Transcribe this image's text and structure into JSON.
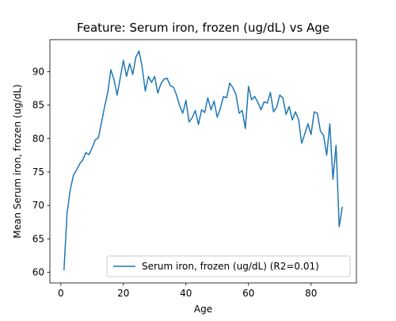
{
  "chart_data": {
    "type": "line",
    "title": "Feature: Serum iron, frozen (ug/dL) vs Age",
    "xlabel": "Age",
    "ylabel": "Mean Serum iron, frozen (ug/dL)",
    "xlim": [
      -3.5,
      94.5
    ],
    "ylim": [
      58.4,
      94.8
    ],
    "xticks": [
      0,
      20,
      40,
      60,
      80
    ],
    "yticks": [
      60,
      65,
      70,
      75,
      80,
      85,
      90
    ],
    "grid": false,
    "legend_position": "bottom-right",
    "series": [
      {
        "name": "Serum iron, frozen (ug/dL) (R2=0.01)",
        "color": "#1f77b4",
        "x": [
          1,
          2,
          3,
          4,
          5,
          6,
          7,
          8,
          9,
          10,
          11,
          12,
          13,
          14,
          15,
          16,
          17,
          18,
          19,
          20,
          21,
          22,
          23,
          24,
          25,
          26,
          27,
          28,
          29,
          30,
          31,
          32,
          33,
          34,
          35,
          36,
          37,
          38,
          39,
          40,
          41,
          42,
          43,
          44,
          45,
          46,
          47,
          48,
          49,
          50,
          51,
          52,
          53,
          54,
          55,
          56,
          57,
          58,
          59,
          60,
          61,
          62,
          63,
          64,
          65,
          66,
          67,
          68,
          69,
          70,
          71,
          72,
          73,
          74,
          75,
          76,
          77,
          78,
          79,
          80,
          81,
          82,
          83,
          84,
          85,
          86,
          87,
          88,
          89,
          90
        ],
        "y": [
          60.3,
          68.9,
          72.3,
          74.5,
          75.3,
          76.2,
          76.8,
          77.9,
          77.6,
          78.6,
          79.8,
          80.1,
          82.4,
          84.8,
          86.9,
          90.3,
          88.8,
          86.5,
          89.1,
          91.7,
          89.3,
          91.2,
          89.6,
          92.2,
          93.1,
          90.7,
          87.1,
          89.3,
          88.4,
          89.3,
          86.8,
          88.2,
          88.9,
          89.0,
          87.9,
          87.7,
          86.5,
          84.9,
          83.8,
          85.7,
          82.5,
          83.1,
          84.2,
          82.1,
          84.3,
          83.9,
          86.1,
          84.3,
          85.6,
          83.2,
          84.5,
          86.3,
          86.1,
          88.3,
          87.6,
          86.6,
          83.8,
          84.2,
          81.5,
          87.8,
          85.8,
          86.3,
          85.4,
          84.3,
          85.5,
          85.3,
          86.9,
          84.0,
          84.7,
          86.5,
          86.1,
          83.6,
          84.8,
          82.8,
          84.0,
          82.9,
          79.3,
          80.7,
          82.2,
          80.6,
          84.0,
          83.8,
          81.1,
          80.5,
          77.5,
          82.2,
          73.9,
          79.0,
          66.8,
          69.8
        ]
      }
    ]
  }
}
